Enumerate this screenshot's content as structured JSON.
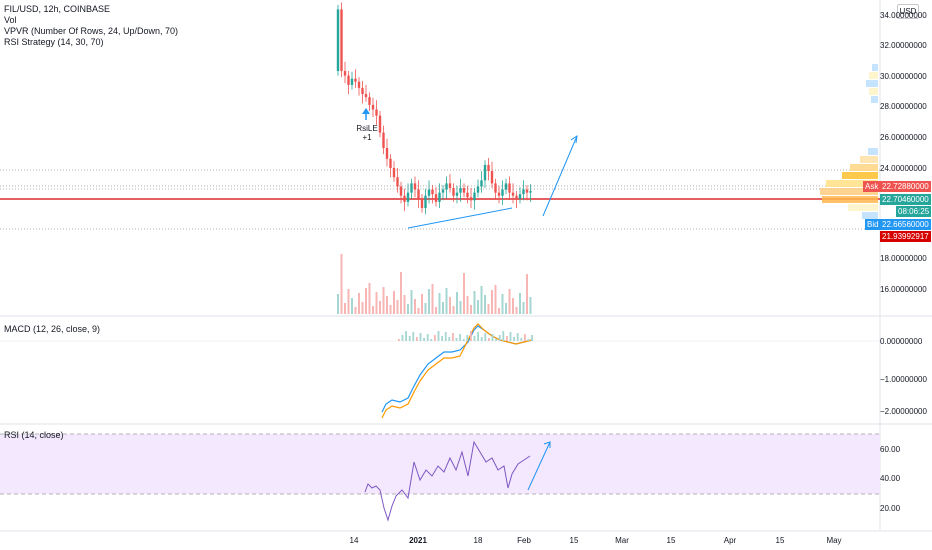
{
  "legend": {
    "symbol": "FIL/USD, 12h, COINBASE",
    "vol": "Vol",
    "vpvr": "VPVR (Number Of Rows, 24, Up/Down, 70)",
    "strategy": "RSI Strategy (14, 30, 70)"
  },
  "currency": "USD",
  "price_axis": [
    "34.00000000",
    "32.00000000",
    "30.00000000",
    "28.00000000",
    "26.00000000",
    "24.00000000",
    "18.00000000",
    "16.00000000"
  ],
  "badges": {
    "ask_label": "Ask",
    "ask_value": "22.72880000",
    "last_value": "22.70460000",
    "countdown": "08:06:25",
    "bid_label": "Bid",
    "bid_value": "22.66560000",
    "low_value": "21.93992917"
  },
  "annotation": {
    "text": "RsiLE",
    "qty": "+1"
  },
  "macd": {
    "label": "MACD (12, 26, close, 9)",
    "axis": [
      "0.00000000",
      "−1.00000000",
      "−2.00000000"
    ]
  },
  "rsi": {
    "label": "RSI (14, close)",
    "axis": [
      "60.00",
      "40.00",
      "20.00"
    ]
  },
  "time_axis": [
    "14",
    "2021",
    "18",
    "Feb",
    "15",
    "Mar",
    "15",
    "Apr",
    "15",
    "May"
  ],
  "colors": {
    "up": "#26a69a",
    "down": "#ef5350",
    "price_line": "#d50000",
    "trendline": "#2196f3",
    "macd_line": "#2196f3",
    "signal_line": "#ff9800",
    "rsi_line": "#7e57c2",
    "rsi_band": "#f3e8fd"
  }
}
